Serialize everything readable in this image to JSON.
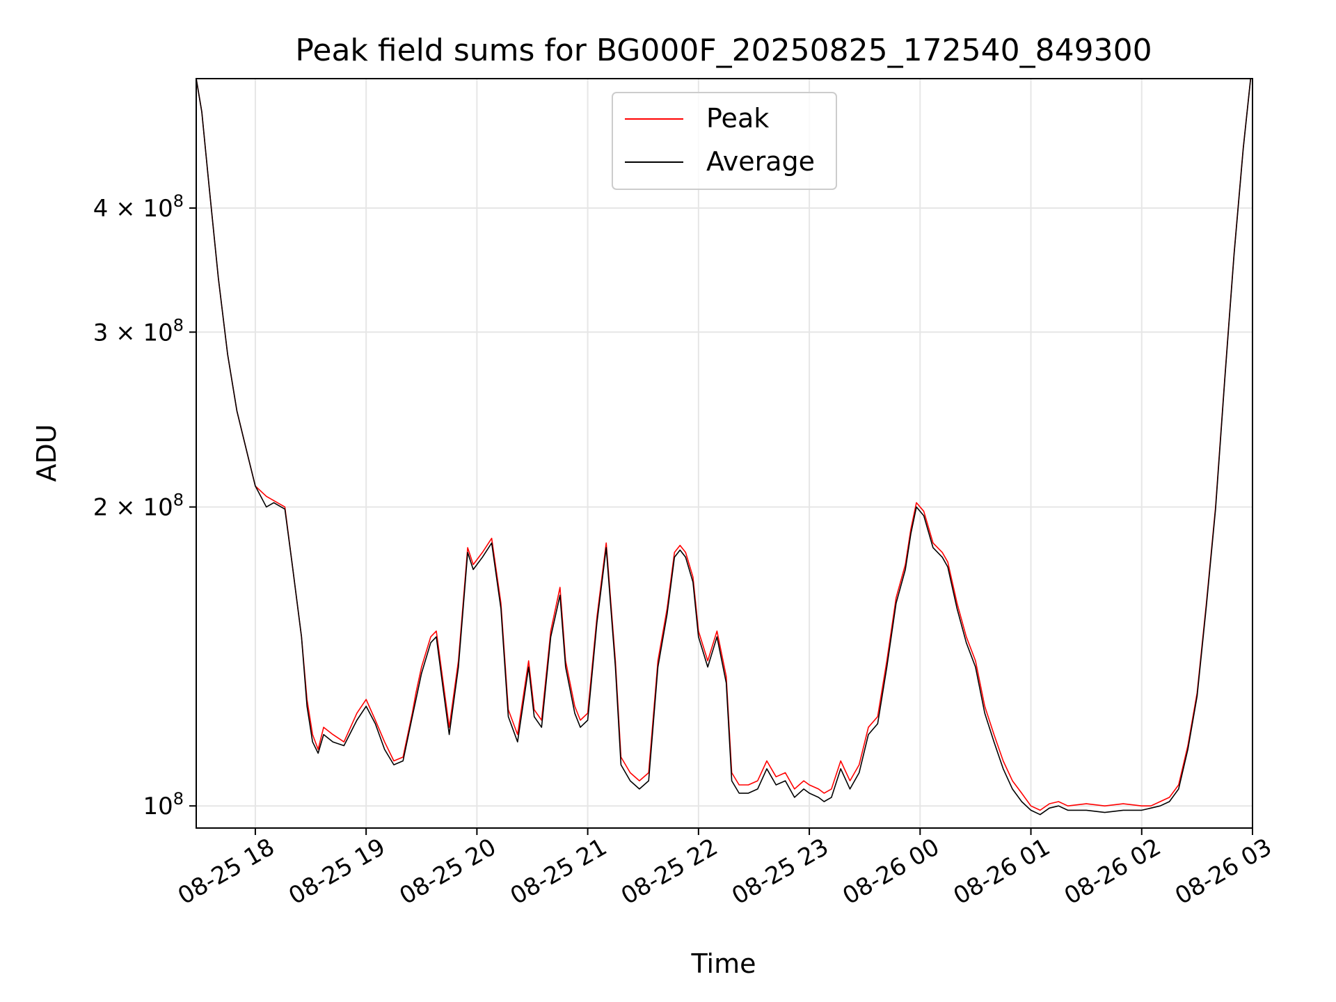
{
  "chart_data": {
    "type": "line",
    "title": "Peak field sums for BG000F_20250825_172540_849300",
    "xlabel": "Time",
    "ylabel": "ADU",
    "yscale": "log",
    "ylim": [
      95000000,
      540000000
    ],
    "xlim": [
      "2025-08-25 17:28",
      "2025-08-26 03:00"
    ],
    "grid": true,
    "legend_position": "top-center",
    "x_ticks": [
      {
        "t": "2025-08-25 18:00",
        "label": "08-25 18"
      },
      {
        "t": "2025-08-25 19:00",
        "label": "08-25 19"
      },
      {
        "t": "2025-08-25 20:00",
        "label": "08-25 20"
      },
      {
        "t": "2025-08-25 21:00",
        "label": "08-25 21"
      },
      {
        "t": "2025-08-25 22:00",
        "label": "08-25 22"
      },
      {
        "t": "2025-08-25 23:00",
        "label": "08-25 23"
      },
      {
        "t": "2025-08-26 00:00",
        "label": "08-26 00"
      },
      {
        "t": "2025-08-26 01:00",
        "label": "08-26 01"
      },
      {
        "t": "2025-08-26 02:00",
        "label": "08-26 02"
      },
      {
        "t": "2025-08-26 03:00",
        "label": "08-26 03"
      }
    ],
    "y_ticks": [
      {
        "value": 100000000,
        "base": "10",
        "exp": "8",
        "mult": ""
      },
      {
        "value": 200000000,
        "base": "10",
        "exp": "8",
        "mult": "2 × "
      },
      {
        "value": 300000000,
        "base": "10",
        "exp": "8",
        "mult": "3 × "
      },
      {
        "value": 400000000,
        "base": "10",
        "exp": "8",
        "mult": "4 × "
      }
    ],
    "series": [
      {
        "name": "Peak",
        "color": "#ff0000",
        "x": [
          "2025-08-25 17:28",
          "2025-08-25 17:31",
          "2025-08-25 17:35",
          "2025-08-25 17:40",
          "2025-08-25 17:45",
          "2025-08-25 17:50",
          "2025-08-25 17:56",
          "2025-08-25 18:00",
          "2025-08-25 18:06",
          "2025-08-25 18:10",
          "2025-08-25 18:16",
          "2025-08-25 18:20",
          "2025-08-25 18:25",
          "2025-08-25 18:28",
          "2025-08-25 18:31",
          "2025-08-25 18:34",
          "2025-08-25 18:37",
          "2025-08-25 18:42",
          "2025-08-25 18:48",
          "2025-08-25 18:55",
          "2025-08-25 19:00",
          "2025-08-25 19:05",
          "2025-08-25 19:10",
          "2025-08-25 19:15",
          "2025-08-25 19:20",
          "2025-08-25 19:25",
          "2025-08-25 19:27",
          "2025-08-25 19:30",
          "2025-08-25 19:35",
          "2025-08-25 19:38",
          "2025-08-25 19:42",
          "2025-08-25 19:45",
          "2025-08-25 19:50",
          "2025-08-25 19:55",
          "2025-08-25 19:58",
          "2025-08-25 20:03",
          "2025-08-25 20:08",
          "2025-08-25 20:13",
          "2025-08-25 20:17",
          "2025-08-25 20:22",
          "2025-08-25 20:28",
          "2025-08-25 20:31",
          "2025-08-25 20:35",
          "2025-08-25 20:40",
          "2025-08-25 20:45",
          "2025-08-25 20:48",
          "2025-08-25 20:53",
          "2025-08-25 20:56",
          "2025-08-25 21:00",
          "2025-08-25 21:05",
          "2025-08-25 21:10",
          "2025-08-25 21:15",
          "2025-08-25 21:18",
          "2025-08-25 21:23",
          "2025-08-25 21:28",
          "2025-08-25 21:33",
          "2025-08-25 21:38",
          "2025-08-25 21:43",
          "2025-08-25 21:47",
          "2025-08-25 21:50",
          "2025-08-25 21:53",
          "2025-08-25 21:57",
          "2025-08-25 22:00",
          "2025-08-25 22:05",
          "2025-08-25 22:10",
          "2025-08-25 22:15",
          "2025-08-25 22:18",
          "2025-08-25 22:22",
          "2025-08-25 22:27",
          "2025-08-25 22:32",
          "2025-08-25 22:37",
          "2025-08-25 22:42",
          "2025-08-25 22:47",
          "2025-08-25 22:52",
          "2025-08-25 22:57",
          "2025-08-25 23:00",
          "2025-08-25 23:05",
          "2025-08-25 23:08",
          "2025-08-25 23:12",
          "2025-08-25 23:17",
          "2025-08-25 23:22",
          "2025-08-25 23:27",
          "2025-08-25 23:32",
          "2025-08-25 23:37",
          "2025-08-25 23:42",
          "2025-08-25 23:47",
          "2025-08-25 23:52",
          "2025-08-25 23:55",
          "2025-08-25 23:58",
          "2025-08-26 00:02",
          "2025-08-26 00:07",
          "2025-08-26 00:12",
          "2025-08-26 00:15",
          "2025-08-26 00:20",
          "2025-08-26 00:25",
          "2025-08-26 00:30",
          "2025-08-26 00:35",
          "2025-08-26 00:40",
          "2025-08-26 00:45",
          "2025-08-26 00:50",
          "2025-08-26 00:55",
          "2025-08-26 01:00",
          "2025-08-26 01:05",
          "2025-08-26 01:10",
          "2025-08-26 01:15",
          "2025-08-26 01:20",
          "2025-08-26 01:30",
          "2025-08-26 01:40",
          "2025-08-26 01:50",
          "2025-08-26 02:00",
          "2025-08-26 02:05",
          "2025-08-26 02:10",
          "2025-08-26 02:15",
          "2025-08-26 02:20",
          "2025-08-26 02:25",
          "2025-08-26 02:30",
          "2025-08-26 02:35",
          "2025-08-26 02:40",
          "2025-08-26 02:45",
          "2025-08-26 02:50",
          "2025-08-26 02:55",
          "2025-08-26 02:59"
        ],
        "y": [
          540000000,
          500000000,
          420000000,
          340000000,
          285000000,
          250000000,
          225000000,
          210000000,
          205000000,
          203000000,
          200000000,
          175000000,
          148000000,
          128000000,
          118000000,
          114000000,
          120000000,
          118000000,
          116000000,
          124000000,
          128000000,
          122000000,
          116000000,
          111000000,
          112000000,
          124000000,
          130000000,
          138000000,
          148000000,
          150000000,
          132000000,
          120000000,
          140000000,
          182000000,
          175000000,
          180000000,
          186000000,
          160000000,
          125000000,
          118000000,
          140000000,
          125000000,
          122000000,
          150000000,
          166000000,
          140000000,
          126000000,
          122000000,
          124000000,
          155000000,
          184000000,
          140000000,
          112000000,
          108000000,
          106000000,
          108000000,
          140000000,
          158000000,
          180000000,
          183000000,
          180000000,
          170000000,
          150000000,
          140000000,
          150000000,
          135000000,
          108000000,
          105000000,
          105000000,
          106000000,
          111000000,
          107000000,
          108000000,
          104000000,
          106000000,
          105000000,
          104000000,
          103000000,
          104000000,
          111000000,
          106000000,
          110000000,
          120000000,
          123000000,
          140000000,
          162000000,
          175000000,
          190000000,
          202000000,
          198000000,
          184000000,
          180000000,
          176000000,
          160000000,
          148000000,
          140000000,
          126000000,
          118000000,
          111000000,
          106000000,
          103000000,
          100000000,
          99000000,
          100500000,
          101000000,
          100000000,
          100500000,
          100000000,
          100500000,
          100000000,
          100000000,
          101000000,
          102000000,
          105000000,
          115000000,
          130000000,
          160000000,
          200000000,
          270000000,
          360000000,
          460000000,
          540000000
        ]
      },
      {
        "name": "Average",
        "color": "#000000",
        "x": [
          "2025-08-25 17:28",
          "2025-08-25 17:31",
          "2025-08-25 17:35",
          "2025-08-25 17:40",
          "2025-08-25 17:45",
          "2025-08-25 17:50",
          "2025-08-25 17:56",
          "2025-08-25 18:00",
          "2025-08-25 18:06",
          "2025-08-25 18:10",
          "2025-08-25 18:16",
          "2025-08-25 18:20",
          "2025-08-25 18:25",
          "2025-08-25 18:28",
          "2025-08-25 18:31",
          "2025-08-25 18:34",
          "2025-08-25 18:37",
          "2025-08-25 18:42",
          "2025-08-25 18:48",
          "2025-08-25 18:55",
          "2025-08-25 19:00",
          "2025-08-25 19:05",
          "2025-08-25 19:10",
          "2025-08-25 19:15",
          "2025-08-25 19:20",
          "2025-08-25 19:25",
          "2025-08-25 19:27",
          "2025-08-25 19:30",
          "2025-08-25 19:35",
          "2025-08-25 19:38",
          "2025-08-25 19:42",
          "2025-08-25 19:45",
          "2025-08-25 19:50",
          "2025-08-25 19:55",
          "2025-08-25 19:58",
          "2025-08-25 20:03",
          "2025-08-25 20:08",
          "2025-08-25 20:13",
          "2025-08-25 20:17",
          "2025-08-25 20:22",
          "2025-08-25 20:28",
          "2025-08-25 20:31",
          "2025-08-25 20:35",
          "2025-08-25 20:40",
          "2025-08-25 20:45",
          "2025-08-25 20:48",
          "2025-08-25 20:53",
          "2025-08-25 20:56",
          "2025-08-25 21:00",
          "2025-08-25 21:05",
          "2025-08-25 21:10",
          "2025-08-25 21:15",
          "2025-08-25 21:18",
          "2025-08-25 21:23",
          "2025-08-25 21:28",
          "2025-08-25 21:33",
          "2025-08-25 21:38",
          "2025-08-25 21:43",
          "2025-08-25 21:47",
          "2025-08-25 21:50",
          "2025-08-25 21:53",
          "2025-08-25 21:57",
          "2025-08-25 22:00",
          "2025-08-25 22:05",
          "2025-08-25 22:10",
          "2025-08-25 22:15",
          "2025-08-25 22:18",
          "2025-08-25 22:22",
          "2025-08-25 22:27",
          "2025-08-25 22:32",
          "2025-08-25 22:37",
          "2025-08-25 22:42",
          "2025-08-25 22:47",
          "2025-08-25 22:52",
          "2025-08-25 22:57",
          "2025-08-25 23:00",
          "2025-08-25 23:05",
          "2025-08-25 23:08",
          "2025-08-25 23:12",
          "2025-08-25 23:17",
          "2025-08-25 23:22",
          "2025-08-25 23:27",
          "2025-08-25 23:32",
          "2025-08-25 23:37",
          "2025-08-25 23:42",
          "2025-08-25 23:47",
          "2025-08-25 23:52",
          "2025-08-25 23:55",
          "2025-08-25 23:58",
          "2025-08-26 00:02",
          "2025-08-26 00:07",
          "2025-08-26 00:12",
          "2025-08-26 00:15",
          "2025-08-26 00:20",
          "2025-08-26 00:25",
          "2025-08-26 00:30",
          "2025-08-26 00:35",
          "2025-08-26 00:40",
          "2025-08-26 00:45",
          "2025-08-26 00:50",
          "2025-08-26 00:55",
          "2025-08-26 01:00",
          "2025-08-26 01:05",
          "2025-08-26 01:10",
          "2025-08-26 01:15",
          "2025-08-26 01:20",
          "2025-08-26 01:30",
          "2025-08-26 01:40",
          "2025-08-26 01:50",
          "2025-08-26 02:00",
          "2025-08-26 02:05",
          "2025-08-26 02:10",
          "2025-08-26 02:15",
          "2025-08-26 02:20",
          "2025-08-26 02:25",
          "2025-08-26 02:30",
          "2025-08-26 02:35",
          "2025-08-26 02:40",
          "2025-08-26 02:45",
          "2025-08-26 02:50",
          "2025-08-26 02:55",
          "2025-08-26 02:59"
        ],
        "y": [
          540000000,
          500000000,
          420000000,
          340000000,
          285000000,
          250000000,
          225000000,
          210000000,
          200000000,
          202000000,
          199000000,
          175000000,
          148000000,
          126000000,
          116000000,
          113000000,
          118000000,
          116000000,
          115000000,
          122000000,
          126000000,
          121000000,
          114000000,
          110000000,
          111000000,
          123000000,
          128000000,
          136000000,
          146000000,
          148000000,
          130000000,
          118000000,
          138000000,
          180000000,
          173000000,
          178000000,
          184000000,
          158000000,
          123000000,
          116000000,
          138000000,
          123000000,
          120000000,
          148000000,
          163000000,
          138000000,
          124000000,
          120000000,
          122000000,
          153000000,
          182000000,
          138000000,
          110000000,
          106000000,
          104000000,
          106000000,
          138000000,
          156000000,
          178000000,
          181000000,
          178000000,
          168000000,
          148000000,
          138000000,
          148000000,
          133000000,
          106000000,
          103000000,
          103000000,
          104000000,
          109000000,
          105000000,
          106000000,
          102000000,
          104000000,
          103000000,
          102000000,
          101000000,
          102000000,
          109000000,
          104000000,
          108000000,
          118000000,
          121000000,
          138000000,
          160000000,
          173000000,
          188000000,
          200000000,
          196000000,
          182000000,
          178000000,
          174000000,
          158000000,
          146000000,
          138000000,
          124000000,
          116000000,
          109000000,
          104000000,
          101000000,
          99000000,
          98000000,
          99500000,
          100000000,
          99000000,
          99000000,
          98500000,
          99000000,
          99000000,
          99500000,
          100000000,
          101000000,
          104000000,
          114000000,
          129000000,
          159000000,
          199000000,
          269000000,
          359000000,
          459000000,
          540000000
        ]
      }
    ]
  }
}
